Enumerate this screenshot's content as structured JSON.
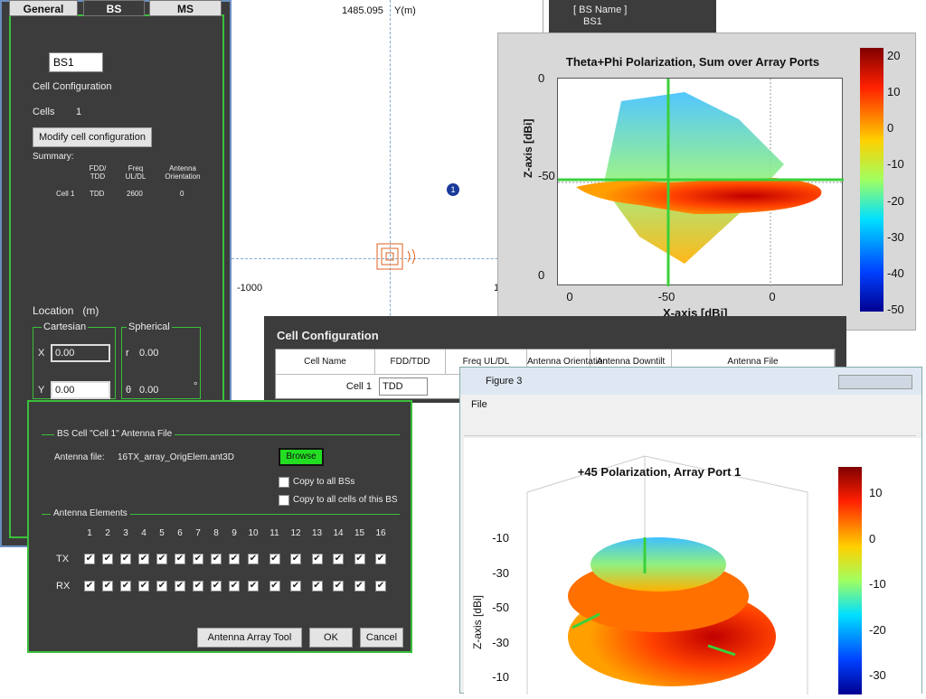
{
  "left_panel": {
    "tabs": [
      "General",
      "BS",
      "MS"
    ],
    "bs_select": "BS1",
    "cell_config_label": "Cell Configuration",
    "cells_label": "Cells",
    "cells_value": "1",
    "modify_button": "Modify cell configuration",
    "summary_label": "Summary:",
    "summary_headers": [
      "FDD/ TDD",
      "Freq UL/DL",
      "Antenna Orientation"
    ],
    "summary_row": [
      "Cell 1",
      "TDD",
      "2600",
      "0"
    ],
    "location_label": "Location   (m)",
    "cartesian_label": "Cartesian",
    "spherical_label": "Spherical",
    "x_label": "X",
    "x_value": "0.00",
    "y_label": "Y",
    "y_value": "0.00",
    "r_label": "r",
    "r_value": "0.00",
    "theta_label": "θ",
    "theta_value": "0.00",
    "degree": "°"
  },
  "map": {
    "y_top": "1485.095",
    "y_axis_label": "Y(m)",
    "x_left": "-1000",
    "x_right": "1",
    "bs_marker": "1"
  },
  "bs_list": {
    "header": "[ BS Name ]",
    "items": [
      "BS1"
    ]
  },
  "figure1": {
    "title": "Theta+Phi Polarization, Sum over Array Ports",
    "x_label": "X-axis [dBi]",
    "y_label": "Z-axis [dBi]",
    "x_ticks": [
      "0",
      "-50",
      "0"
    ],
    "y_ticks": [
      "0",
      "-50",
      "0"
    ],
    "colorbar_ticks": [
      "20",
      "10",
      "0",
      "-10",
      "-20",
      "-30",
      "-40",
      "-50"
    ]
  },
  "cell_config": {
    "title": "Cell Configuration",
    "columns": [
      "Cell Name",
      "FDD/TDD",
      "Freq UL/DL",
      "Antenna Orientation",
      "Antenna Downtilt",
      "Antenna File"
    ],
    "row": [
      "Cell 1",
      "TDD"
    ]
  },
  "antenna_dialog": {
    "group_label": "BS Cell \"Cell 1\" Antenna File",
    "file_label": "Antenna file:",
    "file_name": "16TX_array_OrigElem.ant3D",
    "browse": "Browse",
    "copy_all_bs": "Copy to all BSs",
    "copy_all_cells": "Copy to all cells of this BS",
    "elements_label": "Antenna Elements",
    "element_numbers": [
      "1",
      "2",
      "3",
      "4",
      "5",
      "6",
      "7",
      "8",
      "9",
      "10",
      "11",
      "12",
      "13",
      "14",
      "15",
      "16"
    ],
    "tx_label": "TX",
    "rx_label": "RX",
    "buttons": [
      "Antenna Array Tool",
      "OK",
      "Cancel"
    ]
  },
  "figure3": {
    "window_title": "Figure 3",
    "menu": "File",
    "title": "+45 Polarization, Array Port 1",
    "z_label": "Z-axis [dBi]",
    "z_ticks": [
      "-10",
      "-30",
      "-50",
      "-30",
      "-10"
    ],
    "colorbar_ticks": [
      "10",
      "0",
      "-10",
      "-20",
      "-30"
    ]
  }
}
